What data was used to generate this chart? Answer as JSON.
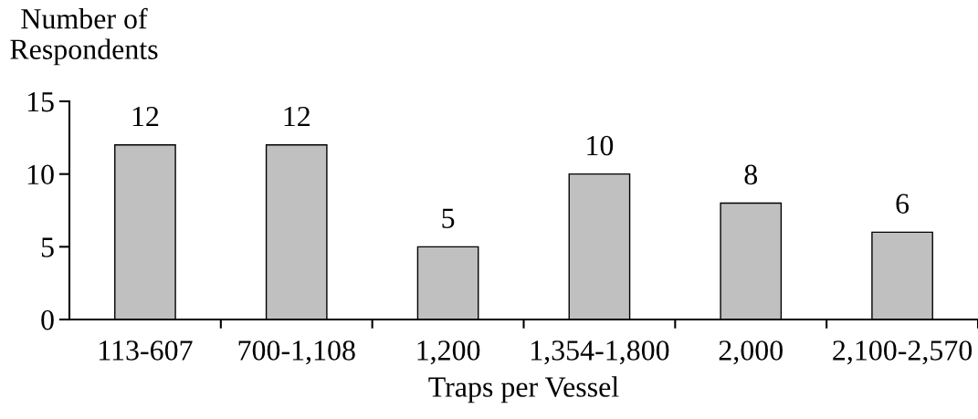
{
  "chart_data": {
    "type": "bar",
    "xlabel": "Traps per Vessel",
    "ylabel": "Number of\nRespondents",
    "categories": [
      "113-607",
      "700-1,108",
      "1,200",
      "1,354-1,800",
      "2,000",
      "2,100-2,570"
    ],
    "values": [
      12,
      12,
      5,
      10,
      8,
      6
    ],
    "color": "#c0c0c0",
    "ylim": [
      0,
      15
    ],
    "yticks": [
      0,
      5,
      10,
      15
    ],
    "data_labels": true,
    "grid": false,
    "legend": false
  }
}
